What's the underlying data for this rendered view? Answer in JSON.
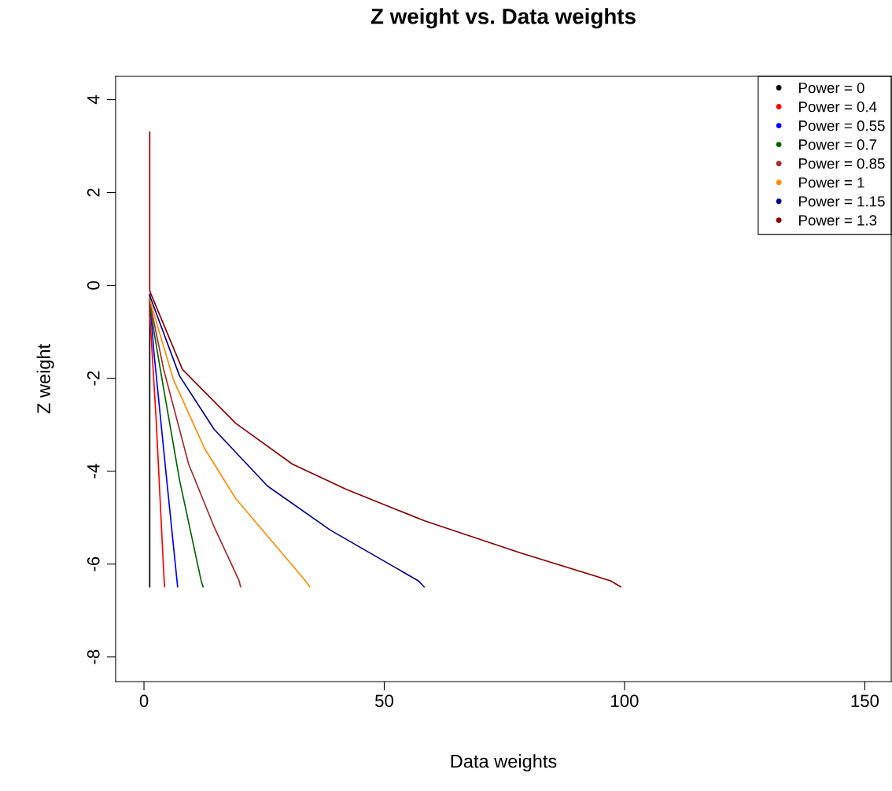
{
  "chart_data": {
    "type": "line",
    "title": "Z weight vs. Data weights",
    "xlabel": "Data weights",
    "ylabel": "Z weight",
    "xlim": [
      -5.9,
      155.5
    ],
    "ylim": [
      -8.53,
      4.5
    ],
    "xticks": [
      0,
      50,
      100,
      150
    ],
    "yticks": [
      -8,
      -6,
      -4,
      -2,
      0,
      2,
      4
    ],
    "grid": false,
    "legend": "top right",
    "marker": "none",
    "line_style": "solid",
    "series": [
      {
        "name": "Power = 0",
        "color": "#000000",
        "x": [
          1.2,
          1.2
        ],
        "values": [
          -0.2,
          -6.49
        ]
      },
      {
        "name": "Power = 0.4",
        "color": "#ff0000",
        "x": [
          1.2,
          1.2,
          2.5,
          4.2,
          4.3
        ],
        "values": [
          -0.3,
          -0.6,
          -2.83,
          -6.36,
          -6.49
        ]
      },
      {
        "name": "Power = 0.55",
        "color": "#0000ff",
        "x": [
          1.2,
          2.1,
          4.4,
          7.0
        ],
        "values": [
          -0.3,
          -1.47,
          -3.85,
          -6.49
        ]
      },
      {
        "name": "Power = 0.7",
        "color": "#006400",
        "x": [
          1.2,
          1.3,
          3.4,
          7.4,
          11.9,
          12.3
        ],
        "values": [
          -0.3,
          -0.5,
          -1.81,
          -4.19,
          -6.36,
          -6.49
        ]
      },
      {
        "name": "Power = 0.85",
        "color": "#a52a2a",
        "x": [
          1.2,
          1.3,
          4.1,
          9.3,
          14.6,
          19.8,
          20.1
        ],
        "values": [
          -0.2,
          -0.4,
          -1.81,
          -3.85,
          -5.2,
          -6.36,
          -6.49
        ]
      },
      {
        "name": "Power = 1",
        "color": "#ff8c00",
        "x": [
          1.2,
          1.3,
          6.1,
          12.6,
          19.1,
          33.6,
          34.5
        ],
        "values": [
          -0.2,
          -0.34,
          -2.02,
          -3.51,
          -4.59,
          -6.36,
          -6.49
        ]
      },
      {
        "name": "Power = 1.15",
        "color": "#00008b",
        "x": [
          1.2,
          1.3,
          7.4,
          14.6,
          25.7,
          38.8,
          57.1,
          58.3
        ],
        "values": [
          -0.2,
          -0.25,
          -1.95,
          -3.1,
          -4.32,
          -5.27,
          -6.36,
          -6.49
        ]
      },
      {
        "name": "Power = 1.3",
        "color": "#8b0000",
        "x": [
          1.2,
          1.2,
          1.3,
          8.0,
          19.1,
          30.9,
          42.1,
          58.4,
          78.1,
          97.1,
          99.2
        ],
        "values": [
          3.3,
          -0.1,
          -0.15,
          -1.81,
          -2.97,
          -3.85,
          -4.39,
          -5.07,
          -5.75,
          -6.36,
          -6.49
        ]
      }
    ]
  }
}
